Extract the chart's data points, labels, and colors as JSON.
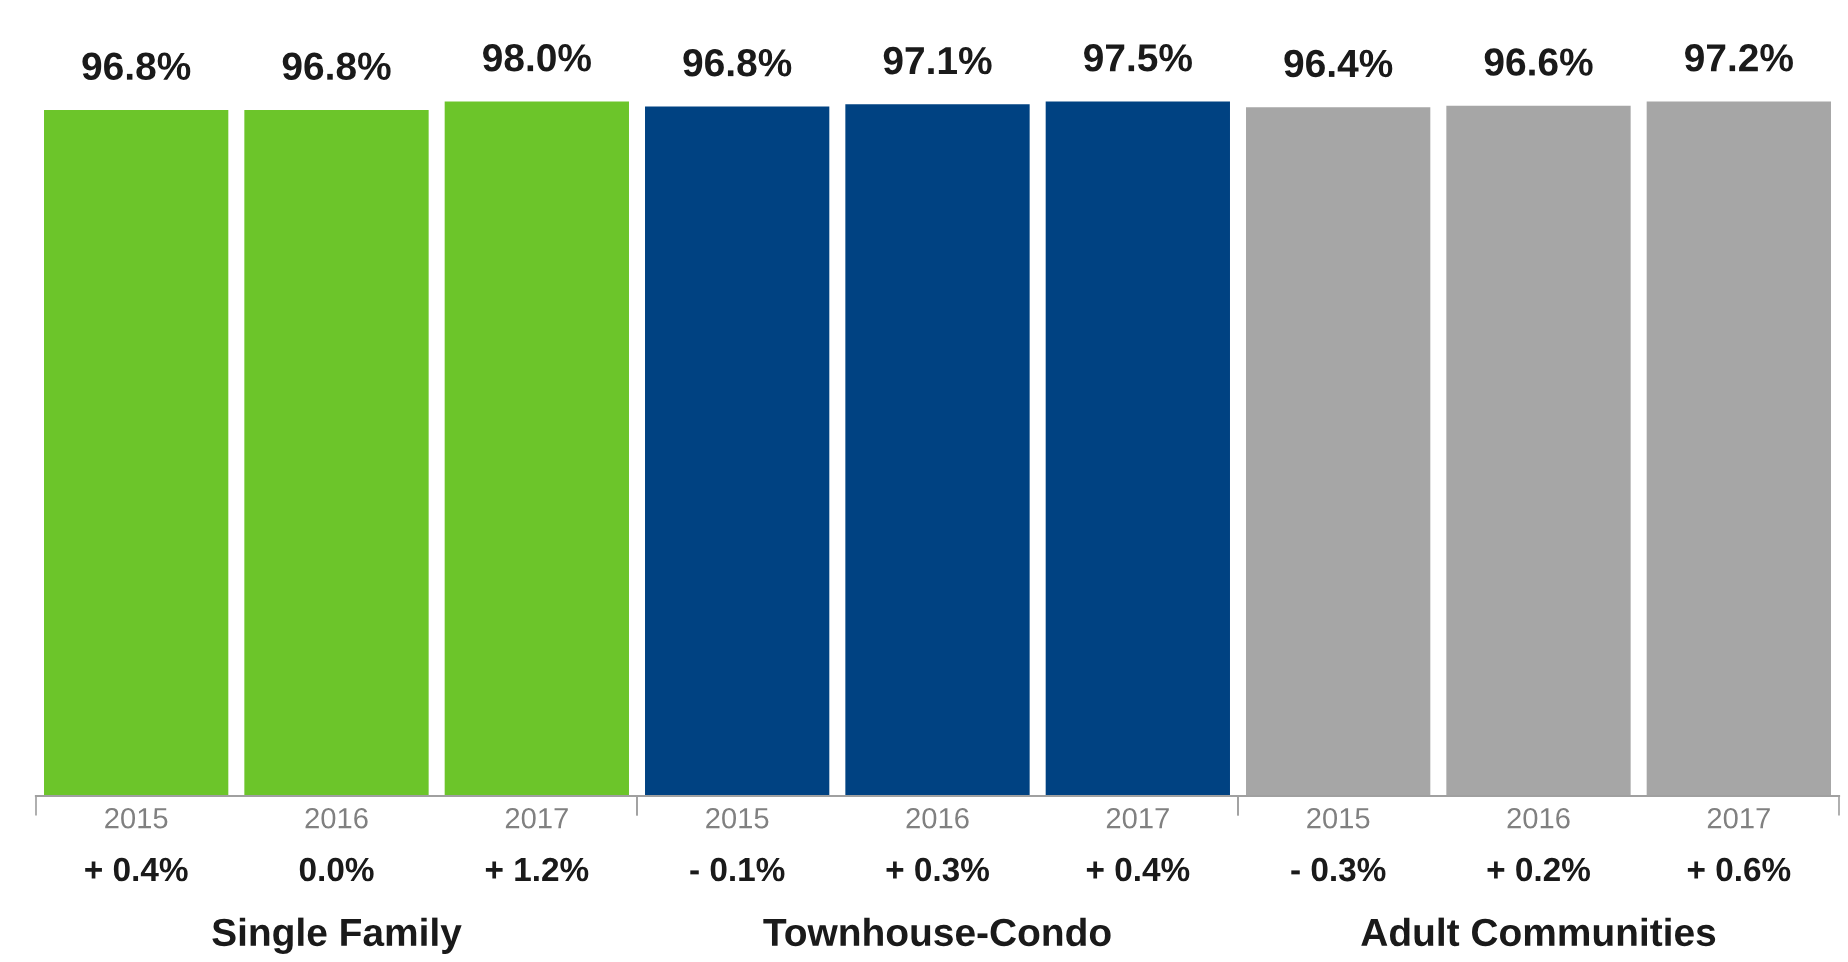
{
  "chart_data": [
    {
      "type": "bar",
      "xlabel": "Single Family",
      "categories": [
        "2015",
        "2016",
        "2017"
      ],
      "values": [
        96.8,
        96.8,
        98.0
      ],
      "value_labels": [
        "96.8%",
        "96.8%",
        "98.0%"
      ],
      "color": "#6cc52a",
      "tick_labels": "x",
      "grid": false,
      "legend": false,
      "annotations": [
        "+ 0.4%",
        "0.0%",
        "+ 1.2%"
      ]
    },
    {
      "type": "bar",
      "xlabel": "Townhouse-Condo",
      "categories": [
        "2015",
        "2016",
        "2017"
      ],
      "values": [
        96.8,
        97.1,
        97.5
      ],
      "value_labels": [
        "96.8%",
        "97.1%",
        "97.5%"
      ],
      "color": "#004282",
      "tick_labels": "x",
      "grid": false,
      "legend": false,
      "annotations": [
        "- 0.1%",
        "+ 0.3%",
        "+ 0.4%"
      ]
    },
    {
      "type": "bar",
      "xlabel": "Adult Communities",
      "categories": [
        "2015",
        "2016",
        "2017"
      ],
      "values": [
        96.4,
        96.6,
        97.2
      ],
      "value_labels": [
        "96.4%",
        "96.6%",
        "97.2%"
      ],
      "color": "#a6a6a6",
      "tick_labels": "x",
      "grid": false,
      "legend": false,
      "annotations": [
        "- 0.3%",
        "+ 0.2%",
        "+ 0.6%"
      ]
    }
  ]
}
